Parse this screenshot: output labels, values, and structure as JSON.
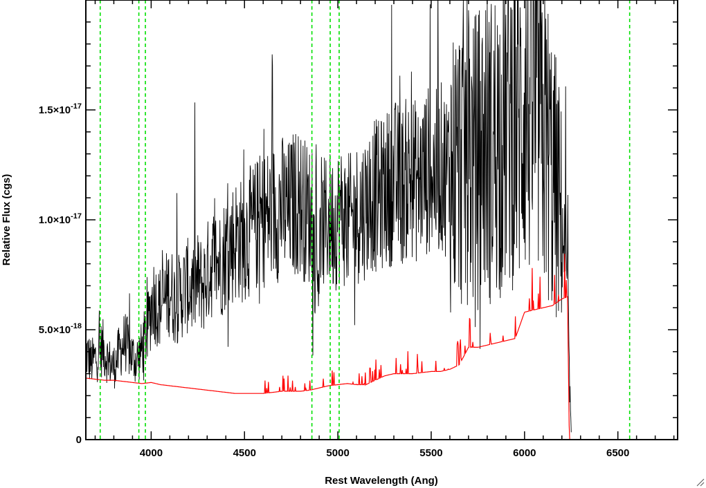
{
  "chart_data": {
    "type": "line",
    "title": "",
    "xlabel": "Rest Wavelength (Ang)",
    "ylabel": "Relative Flux (cgs)",
    "xlim": [
      3650,
      6820
    ],
    "ylim": [
      0,
      2e-17
    ],
    "x_ticks": [
      {
        "value": 4000,
        "label": "4000"
      },
      {
        "value": 4500,
        "label": "4500"
      },
      {
        "value": 5000,
        "label": "5000"
      },
      {
        "value": 5500,
        "label": "5500"
      },
      {
        "value": 6000,
        "label": "6000"
      },
      {
        "value": 6500,
        "label": "6500"
      }
    ],
    "y_ticks": [
      {
        "value": 0,
        "label": "0",
        "exp": ""
      },
      {
        "value": 5e-18,
        "label": "5.0×10",
        "exp": "-18"
      },
      {
        "value": 1e-17,
        "label": "1.0×10",
        "exp": "-17"
      },
      {
        "value": 1.5e-17,
        "label": "1.5×10",
        "exp": "-17"
      }
    ],
    "x_minor_step": 100,
    "y_minor_step": 1e-18,
    "vertical_lines": {
      "color": "#00e000",
      "style": "dashed",
      "x": [
        3727,
        3934,
        3969,
        4861,
        4959,
        5007,
        6563
      ]
    },
    "series": [
      {
        "color": "#000000",
        "x": [
          3650,
          3680,
          3710,
          3740,
          3770,
          3800,
          3830,
          3860,
          3890,
          3920,
          3950,
          3980,
          4010,
          4040,
          4070,
          4100,
          4130,
          4160,
          4190,
          4220,
          4250,
          4280,
          4310,
          4340,
          4370,
          4400,
          4430,
          4460,
          4490,
          4520,
          4550,
          4580,
          4610,
          4640,
          4670,
          4700,
          4730,
          4760,
          4790,
          4820,
          4850,
          4870,
          4890,
          4920,
          4950,
          4980,
          5010,
          5040,
          5070,
          5100,
          5130,
          5160,
          5190,
          5220,
          5250,
          5280,
          5310,
          5340,
          5370,
          5400,
          5430,
          5460,
          5490,
          5520,
          5550,
          5580,
          5610,
          5640,
          5670,
          5700,
          5730,
          5760,
          5790,
          5820,
          5850,
          5880,
          5910,
          5940,
          5970,
          6000,
          6030,
          6060,
          6090,
          6120,
          6150,
          6180,
          6210,
          6230,
          6240,
          6250
        ],
        "y": [
          4e-18,
          3.5e-18,
          3.8e-18,
          4.2e-18,
          3.6e-18,
          3.3e-18,
          4e-18,
          4.5e-18,
          3.9e-18,
          3.6e-18,
          4.1e-18,
          5e-18,
          6.5e-18,
          6e-18,
          6.3e-18,
          6.9e-18,
          6.2e-18,
          6.6e-18,
          7e-18,
          6.8e-18,
          7.2e-18,
          7e-18,
          7.8e-18,
          8.2e-18,
          8e-18,
          8.6e-18,
          8.9e-18,
          9.2e-18,
          9e-18,
          9.4e-18,
          9.6e-18,
          9.9e-18,
          1.01e-17,
          1.02e-17,
          1.04e-17,
          1.06e-17,
          1.03e-17,
          1.07e-17,
          1.09e-17,
          1.05e-17,
          1.02e-17,
          8.8e-18,
          7.6e-18,
          9.6e-18,
          1.01e-17,
          9.8e-18,
          1.03e-17,
          1e-17,
          9.9e-18,
          1.03e-17,
          1.05e-17,
          1.08e-17,
          1.12e-17,
          1.1e-17,
          1.14e-17,
          1.15e-17,
          1.18e-17,
          1.15e-17,
          1.19e-17,
          1.2e-17,
          1.16e-17,
          1.21e-17,
          1.23e-17,
          1.2e-17,
          1.24e-17,
          1.22e-17,
          1.25e-17,
          1.26e-17,
          1.3e-17,
          1.32e-17,
          1.25e-17,
          1.3e-17,
          1.35e-17,
          1.32e-17,
          1.38e-17,
          1.4e-17,
          1.46e-17,
          1.5e-17,
          1.42e-17,
          1.56e-17,
          1.5e-17,
          1.53e-17,
          1.42e-17,
          1.35e-17,
          1.2e-17,
          1.1e-17,
          9e-18,
          7e-18,
          3e-18,
          3e-19
        ]
      },
      {
        "color": "#ff0000",
        "x": [
          3650,
          3700,
          3750,
          3800,
          3850,
          3900,
          3950,
          4000,
          4050,
          4100,
          4150,
          4200,
          4250,
          4300,
          4350,
          4400,
          4450,
          4500,
          4550,
          4600,
          4650,
          4700,
          4750,
          4800,
          4850,
          4900,
          4950,
          5000,
          5050,
          5100,
          5150,
          5200,
          5250,
          5300,
          5350,
          5400,
          5450,
          5500,
          5550,
          5600,
          5650,
          5700,
          5750,
          5800,
          5850,
          5900,
          5950,
          6000,
          6050,
          6100,
          6150,
          6200,
          6230,
          6240,
          6400,
          6600,
          6820
        ],
        "y": [
          2.8e-18,
          2.75e-18,
          2.7e-18,
          2.7e-18,
          2.65e-18,
          2.6e-18,
          2.55e-18,
          2.6e-18,
          2.5e-18,
          2.45e-18,
          2.4e-18,
          2.35e-18,
          2.3e-18,
          2.25e-18,
          2.2e-18,
          2.15e-18,
          2.1e-18,
          2.1e-18,
          2.1e-18,
          2.1e-18,
          2.15e-18,
          2.2e-18,
          2.2e-18,
          2.2e-18,
          2.25e-18,
          2.35e-18,
          2.45e-18,
          2.5e-18,
          2.55e-18,
          2.5e-18,
          2.5e-18,
          2.7e-18,
          2.9e-18,
          3e-18,
          3e-18,
          3e-18,
          3.05e-18,
          3.1e-18,
          3.1e-18,
          3.2e-18,
          3.4e-18,
          4.2e-18,
          4.2e-18,
          4.3e-18,
          4.4e-18,
          4.5e-18,
          4.6e-18,
          5.8e-18,
          5.9e-18,
          6e-18,
          6.1e-18,
          6.4e-18,
          6.5e-18,
          0,
          0,
          0,
          0
        ]
      }
    ]
  }
}
